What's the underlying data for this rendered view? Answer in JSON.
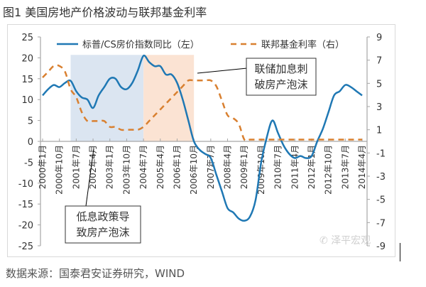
{
  "title": "图1 美国房地产价格波动与联邦基金利率",
  "source": "数据来源：国泰君安证券研究，WIND",
  "watermark": "泽平宏观",
  "colors": {
    "house_line": "#1f78b4",
    "fed_line": "#d98030",
    "blue_shade": "#dbe5f1",
    "orange_shade": "#fbe3d3",
    "axis": "#a6a6a6",
    "text": "#333333"
  },
  "chart_data": {
    "type": "line",
    "title": "图1 美国房地产价格波动与联邦基金利率",
    "xlabel": "",
    "ylabel_left": "",
    "ylabel_right": "",
    "ylim_left": [
      -25,
      25
    ],
    "ylim_right": [
      -9,
      9
    ],
    "yticks_left": [
      "25",
      "20",
      "15",
      "10",
      "5",
      "0",
      "-5",
      "-10",
      "-15",
      "-20",
      "-25"
    ],
    "yticks_right": [
      "9",
      "7",
      "5",
      "3",
      "1",
      "-1",
      "-3",
      "-5",
      "-7",
      "-9"
    ],
    "xticks": [
      "2000年1月",
      "2000年10月",
      "2001年7月",
      "2002年4月",
      "2003年1月",
      "2003年10月",
      "2004年7月",
      "2005年4月",
      "2006年1月",
      "2006年10月",
      "2007年7月",
      "2008年4月",
      "2009年1月",
      "2009年10月",
      "2010年7月",
      "2011年4月",
      "2012年1月",
      "2012年10月",
      "2013年7月",
      "2014年4月"
    ],
    "x": [
      "2000-01",
      "2000-04",
      "2000-07",
      "2000-10",
      "2001-01",
      "2001-04",
      "2001-07",
      "2001-10",
      "2002-01",
      "2002-04",
      "2002-07",
      "2002-10",
      "2003-01",
      "2003-04",
      "2003-07",
      "2003-10",
      "2004-01",
      "2004-04",
      "2004-07",
      "2004-10",
      "2005-01",
      "2005-04",
      "2005-07",
      "2005-10",
      "2006-01",
      "2006-04",
      "2006-07",
      "2006-10",
      "2007-01",
      "2007-04",
      "2007-07",
      "2007-10",
      "2008-01",
      "2008-04",
      "2008-07",
      "2008-10",
      "2009-01",
      "2009-04",
      "2009-07",
      "2009-10",
      "2010-01",
      "2010-04",
      "2010-07",
      "2010-10",
      "2011-01",
      "2011-04",
      "2011-07",
      "2011-10",
      "2012-01",
      "2012-04",
      "2012-07",
      "2012-10",
      "2013-01",
      "2013-04",
      "2013-07",
      "2013-10",
      "2014-01",
      "2014-04"
    ],
    "series": [
      {
        "name": "标普/CS房价指数同比（左）",
        "axis": "left",
        "style": "solid",
        "values": [
          11,
          12.5,
          13.5,
          13,
          14,
          14.5,
          12,
          10.5,
          10,
          8,
          11,
          13,
          15,
          15,
          13,
          12.5,
          14,
          17,
          20.5,
          19,
          18,
          18,
          16,
          16,
          14,
          10,
          5,
          0,
          -2,
          -3,
          -4,
          -8,
          -12,
          -16,
          -17,
          -18.5,
          -19,
          -18,
          -14,
          -5,
          1,
          5,
          2,
          -1,
          -3,
          -4,
          -3.5,
          -4,
          -3.5,
          0,
          3,
          7,
          11,
          12,
          13.5,
          13,
          12,
          11
        ]
      },
      {
        "name": "联邦基金利率（右）",
        "axis": "right",
        "style": "dashed",
        "values": [
          5.5,
          6.0,
          6.5,
          6.5,
          6.0,
          4.5,
          3.8,
          2.5,
          1.75,
          1.75,
          1.75,
          1.75,
          1.25,
          1.25,
          1.0,
          1.0,
          1.0,
          1.0,
          1.25,
          1.75,
          2.25,
          2.75,
          3.25,
          3.75,
          4.25,
          4.75,
          5.25,
          5.25,
          5.25,
          5.25,
          5.25,
          4.75,
          3.5,
          2.25,
          2.0,
          1.5,
          0.15,
          0.15,
          0.15,
          0.15,
          0.15,
          0.15,
          0.15,
          0.15,
          0.15,
          0.15,
          0.15,
          0.15,
          0.15,
          0.15,
          0.15,
          0.15,
          0.15,
          0.15,
          0.15,
          0.15,
          0.15,
          0.15
        ]
      }
    ],
    "shaded_regions": [
      {
        "name": "low-rate-period",
        "from": "2001-04",
        "to": "2004-07",
        "color": "blue"
      },
      {
        "name": "rate-hike-period",
        "from": "2004-07",
        "to": "2006-10",
        "color": "orange"
      }
    ],
    "annotations": [
      {
        "text_lines": [
          "低息政策导",
          "致房产泡沫"
        ],
        "points_to": "2002-04"
      },
      {
        "text_lines": [
          "联储加息刺",
          "破房产泡沫"
        ],
        "points_to": "2006-10"
      }
    ],
    "legend": {
      "placement": "top",
      "entries": [
        "标普/CS房价指数同比（左）",
        "联邦基金利率（右）"
      ]
    },
    "grid": false
  }
}
